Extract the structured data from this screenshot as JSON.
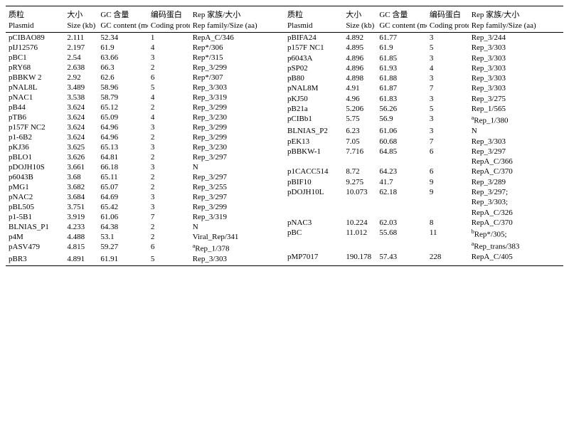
{
  "header_cn": [
    "质粒",
    "大小",
    "GC 含量",
    "编码蛋白",
    "Rep 家族/大小"
  ],
  "header_en": [
    "Plasmid",
    "Size (kb)",
    "GC content (mol%)",
    "Coding protein",
    "Rep family/Size (aa)"
  ],
  "left_rows": [
    [
      "pCIBAO89",
      "2.111",
      "52.34",
      "1",
      "RepA_C/346"
    ],
    [
      "pIJ12576",
      "2.197",
      "61.9",
      "4",
      "Rep*/306"
    ],
    [
      "pBC1",
      "2.54",
      "63.66",
      "3",
      "Rep*/315"
    ],
    [
      "pRY68",
      "2.638",
      "66.3",
      "2",
      "Rep_3/299"
    ],
    [
      "pBBKW 2",
      "2.92",
      "62.6",
      "6",
      "Rep*/307"
    ],
    [
      "pNAL8L",
      "3.489",
      "58.96",
      "5",
      "Rep_3/303"
    ],
    [
      "pNAC1",
      "3.538",
      "58.79",
      "4",
      "Rep_3/319"
    ],
    [
      "pB44",
      "3.624",
      "65.12",
      "2",
      "Rep_3/299"
    ],
    [
      "pTB6",
      "3.624",
      "65.09",
      "4",
      "Rep_3/230"
    ],
    [
      "p157F NC2",
      "3.624",
      "64.96",
      "3",
      "Rep_3/299"
    ],
    [
      "p1-6B2",
      "3.624",
      "64.96",
      "2",
      "Rep_3/299"
    ],
    [
      "pKJ36",
      "3.625",
      "65.13",
      "3",
      "Rep_3/230"
    ],
    [
      "pBLO1",
      "3.626",
      "64.81",
      "2",
      "Rep_3/297"
    ],
    [
      "pDOJH10S",
      "3.661",
      "66.18",
      "3",
      "N"
    ],
    [
      "p6043B",
      "3.68",
      "65.11",
      "2",
      "Rep_3/297"
    ],
    [
      "pMG1",
      "3.682",
      "65.07",
      "2",
      "Rep_3/255"
    ],
    [
      "pNAC2",
      "3.684",
      "64.69",
      "3",
      "Rep_3/297"
    ],
    [
      "pBL505",
      "3.751",
      "65.42",
      "3",
      "Rep_3/299"
    ],
    [
      "p1-5B1",
      "3.919",
      "61.06",
      "7",
      "Rep_3/319"
    ],
    [
      "BLNIAS_P1",
      "4.233",
      "64.38",
      "2",
      "N"
    ],
    [
      "p4M",
      "4.488",
      "53.1",
      "2",
      "Viral_Rep/341"
    ],
    [
      "pASV479",
      "4.815",
      "59.27",
      "6",
      "<span class='sup'>a</span>Rep_1/378"
    ],
    [
      "pBR3",
      "4.891",
      "61.91",
      "5",
      "Rep_3/303"
    ]
  ],
  "right_rows": [
    [
      "pBIFA24",
      "4.892",
      "61.77",
      "3",
      "Rep_3/244"
    ],
    [
      "p157F NC1",
      "4.895",
      "61.9",
      "5",
      "Rep_3/303"
    ],
    [
      "p6043A",
      "4.896",
      "61.85",
      "3",
      "Rep_3/303"
    ],
    [
      "pSP02",
      "4.896",
      "61.93",
      "4",
      "Rep_3/303"
    ],
    [
      "pB80",
      "4.898",
      "61.88",
      "3",
      "Rep_3/303"
    ],
    [
      "pNAL8M",
      "4.91",
      "61.87",
      "7",
      "Rep_3/303"
    ],
    [
      "pKJ50",
      "4.96",
      "61.83",
      "3",
      "Rep_3/275"
    ],
    [
      "pB21a",
      "5.206",
      "56.26",
      "5",
      "Rep_1/565"
    ],
    [
      "pCIBb1",
      "5.75",
      "56.9",
      "3",
      "<span class='sup'>a</span>Rep_1/380"
    ],
    [
      "BLNIAS_P2",
      "6.23",
      "61.06",
      "3",
      "N"
    ],
    [
      "pEK13",
      "7.05",
      "60.68",
      "7",
      "Rep_3/303"
    ],
    [
      "pBBKW-1",
      "7.716",
      "64.85",
      "6",
      "Rep_3/297"
    ],
    [
      "",
      "",
      "",
      "",
      "RepA_C/366"
    ],
    [
      "p1CACC514",
      "8.72",
      "64.23",
      "6",
      "RepA_C/370"
    ],
    [
      "pBIF10",
      "9.275",
      "41.7",
      "9",
      "Rep_3/289"
    ],
    [
      "pDOJH10L",
      "10.073",
      "62.18",
      "9",
      "Rep_3/297;"
    ],
    [
      "",
      "",
      "",
      "",
      "Rep_3/303;"
    ],
    [
      "",
      "",
      "",
      "",
      "RepA_C/326"
    ],
    [
      "pNAC3",
      "10.224",
      "62.03",
      "8",
      "RepA_C/370"
    ],
    [
      "pBC",
      "11.012",
      "55.68",
      "11",
      "<span class='sup'>b</span>Rep*/305;"
    ],
    [
      "",
      "",
      "",
      "",
      "<span class='sup'>a</span>Rep_trans/383"
    ],
    [
      "pMP7017",
      "190.178",
      "57.43",
      "228",
      "RepA_C/405"
    ],
    [
      "",
      "",
      "",
      "",
      ""
    ]
  ]
}
